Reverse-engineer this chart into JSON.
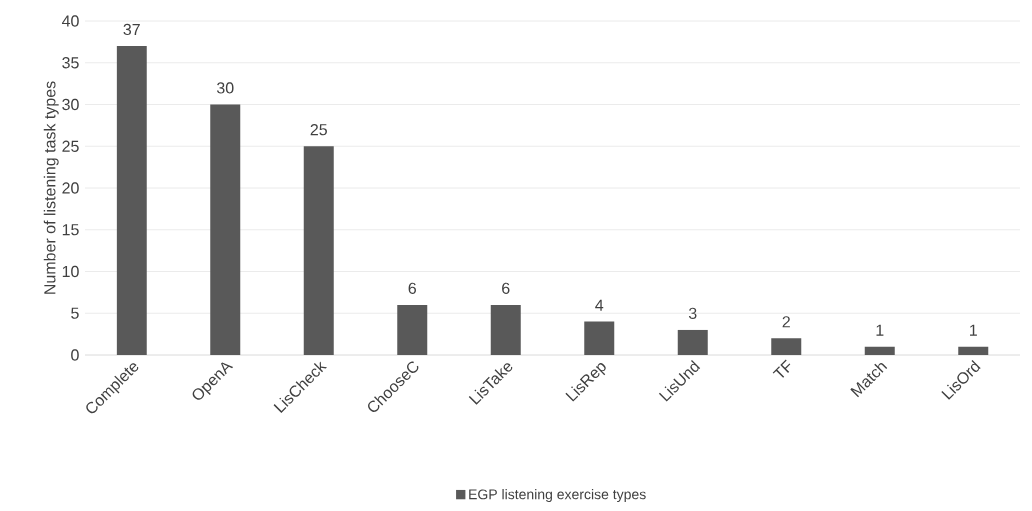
{
  "chart_data": {
    "type": "bar",
    "ylabel": "Number of listening task types",
    "categories": [
      "Complete",
      "OpenA",
      "LisCheck",
      "ChooseC",
      "LisTake",
      "LisRep",
      "LisUnd",
      "TF",
      "Match",
      "LisOrd"
    ],
    "series": [
      {
        "name": "EGP listening exercise types",
        "color": "#595959",
        "values": [
          37,
          30,
          25,
          6,
          6,
          4,
          3,
          2,
          1,
          1
        ]
      }
    ],
    "ylim": [
      0,
      40
    ],
    "yticks": [
      0,
      5,
      10,
      15,
      20,
      25,
      30,
      35,
      40
    ],
    "grid": "y",
    "legend": "bottom",
    "data_labels": true
  }
}
